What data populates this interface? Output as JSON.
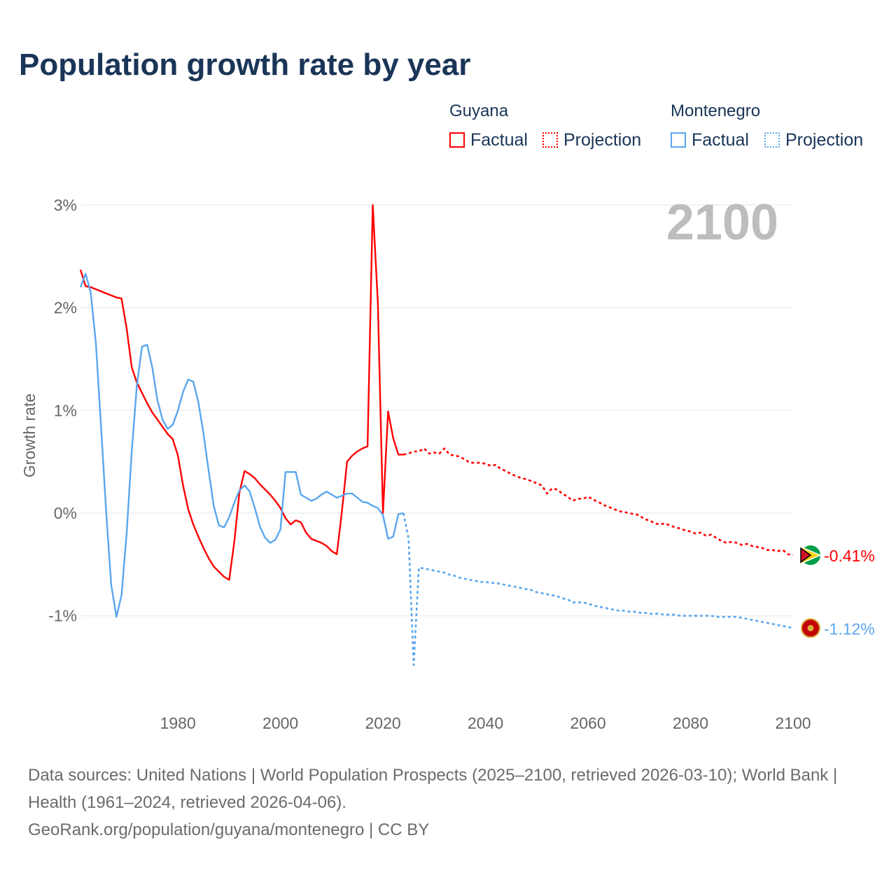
{
  "title": "Population growth rate by year",
  "legend": {
    "groups": [
      {
        "name": "Guyana",
        "color": "#ff0000",
        "factual": "Factual",
        "projection": "Projection"
      },
      {
        "name": "Montenegro",
        "color": "#5aa6ee",
        "factual": "Factual",
        "projection": "Projection"
      }
    ]
  },
  "year_label": "2100",
  "footer": {
    "line1": "Data sources: United Nations | World Population Prospects (2025–2100, retrieved 2026-03-10); World Bank | Health (1961–2024, retrieved 2026-04-06).",
    "line2": "GeoRank.org/population/guyana/montenegro | CC BY"
  },
  "chart_data": {
    "type": "line",
    "title": "Population growth rate by year",
    "xlabel": "",
    "ylabel": "Growth rate",
    "xlim": [
      1961,
      2100
    ],
    "ylim": [
      -1.7,
      3.1
    ],
    "x_ticks": [
      1980,
      2000,
      2020,
      2040,
      2060,
      2080,
      2100
    ],
    "y_ticks": [
      -1,
      0,
      1,
      2,
      3
    ],
    "y_tick_labels": [
      "-1%",
      "0%",
      "1%",
      "2%",
      "3%"
    ],
    "grid": true,
    "series": [
      {
        "name": "Guyana Factual",
        "color": "#ff0000",
        "style": "solid",
        "start_year": 1961,
        "values": [
          2.37,
          2.21,
          2.2,
          2.18,
          2.16,
          2.14,
          2.12,
          2.1,
          2.09,
          1.8,
          1.42,
          1.27,
          1.17,
          1.07,
          0.98,
          0.91,
          0.84,
          0.77,
          0.72,
          0.56,
          0.27,
          0.04,
          -0.11,
          -0.23,
          -0.34,
          -0.44,
          -0.52,
          -0.57,
          -0.62,
          -0.65,
          -0.28,
          0.2,
          0.41,
          0.38,
          0.34,
          0.28,
          0.23,
          0.18,
          0.12,
          0.05,
          -0.05,
          -0.11,
          -0.07,
          -0.09,
          -0.19,
          -0.25,
          -0.27,
          -0.29,
          -0.32,
          -0.37,
          -0.4,
          0.02,
          0.5,
          0.56,
          0.6,
          0.63,
          0.65,
          3.0,
          2.05,
          0.0,
          0.99,
          0.73,
          0.57,
          0.57
        ]
      },
      {
        "name": "Guyana Projection",
        "color": "#ff0000",
        "style": "dotted",
        "start_year": 2024,
        "values": [
          0.57,
          0.58,
          0.6,
          0.6,
          0.63,
          0.58,
          0.59,
          0.58,
          0.63,
          0.57,
          0.56,
          0.55,
          0.52,
          0.49,
          0.49,
          0.49,
          0.48,
          0.46,
          0.47,
          0.43,
          0.41,
          0.38,
          0.36,
          0.34,
          0.33,
          0.31,
          0.29,
          0.27,
          0.19,
          0.24,
          0.23,
          0.19,
          0.16,
          0.12,
          0.14,
          0.14,
          0.16,
          0.13,
          0.11,
          0.08,
          0.06,
          0.04,
          0.02,
          0.01,
          0.0,
          -0.01,
          -0.02,
          -0.06,
          -0.07,
          -0.1,
          -0.11,
          -0.1,
          -0.12,
          -0.14,
          -0.15,
          -0.17,
          -0.18,
          -0.2,
          -0.19,
          -0.22,
          -0.21,
          -0.24,
          -0.27,
          -0.29,
          -0.28,
          -0.29,
          -0.31,
          -0.3,
          -0.32,
          -0.33,
          -0.34,
          -0.36,
          -0.36,
          -0.37,
          -0.36,
          -0.4,
          -0.41
        ]
      },
      {
        "name": "Montenegro Factual",
        "color": "#5aa6ee",
        "style": "solid",
        "start_year": 1961,
        "values": [
          2.2,
          2.33,
          2.15,
          1.65,
          0.85,
          0.02,
          -0.7,
          -1.01,
          -0.8,
          -0.2,
          0.6,
          1.25,
          1.62,
          1.64,
          1.42,
          1.1,
          0.91,
          0.82,
          0.86,
          1.0,
          1.18,
          1.3,
          1.28,
          1.08,
          0.77,
          0.41,
          0.07,
          -0.12,
          -0.14,
          -0.04,
          0.1,
          0.22,
          0.27,
          0.21,
          0.05,
          -0.13,
          -0.24,
          -0.29,
          -0.26,
          -0.16,
          0.4,
          0.4,
          0.4,
          0.18,
          0.15,
          0.12,
          0.14,
          0.18,
          0.21,
          0.18,
          0.15,
          0.17,
          0.19,
          0.19,
          0.15,
          0.11,
          0.1,
          0.07,
          0.05,
          -0.02,
          -0.25,
          -0.23,
          -0.01,
          0.0
        ]
      },
      {
        "name": "Montenegro Projection",
        "color": "#5aa6ee",
        "style": "dotted",
        "start_year": 2024,
        "values": [
          0.0,
          -0.25,
          -1.48,
          -0.53,
          -0.54,
          -0.55,
          -0.56,
          -0.57,
          -0.58,
          -0.6,
          -0.61,
          -0.63,
          -0.64,
          -0.65,
          -0.66,
          -0.67,
          -0.67,
          -0.68,
          -0.68,
          -0.69,
          -0.7,
          -0.71,
          -0.72,
          -0.73,
          -0.74,
          -0.75,
          -0.77,
          -0.78,
          -0.79,
          -0.8,
          -0.81,
          -0.83,
          -0.84,
          -0.87,
          -0.87,
          -0.87,
          -0.88,
          -0.9,
          -0.91,
          -0.92,
          -0.93,
          -0.94,
          -0.95,
          -0.95,
          -0.96,
          -0.96,
          -0.97,
          -0.97,
          -0.98,
          -0.98,
          -0.98,
          -0.99,
          -0.99,
          -0.99,
          -1.0,
          -1.0,
          -1.0,
          -1.0,
          -1.0,
          -1.0,
          -1.0,
          -1.01,
          -1.01,
          -1.01,
          -1.01,
          -1.01,
          -1.02,
          -1.03,
          -1.04,
          -1.05,
          -1.06,
          -1.07,
          -1.08,
          -1.09,
          -1.1,
          -1.11,
          -1.12
        ]
      }
    ],
    "end_labels": [
      {
        "country": "Guyana",
        "label": "-0.41%",
        "value": -0.41,
        "color": "#ff0000"
      },
      {
        "country": "Montenegro",
        "label": "-1.12%",
        "value": -1.12,
        "color": "#5aa6ee"
      }
    ]
  }
}
